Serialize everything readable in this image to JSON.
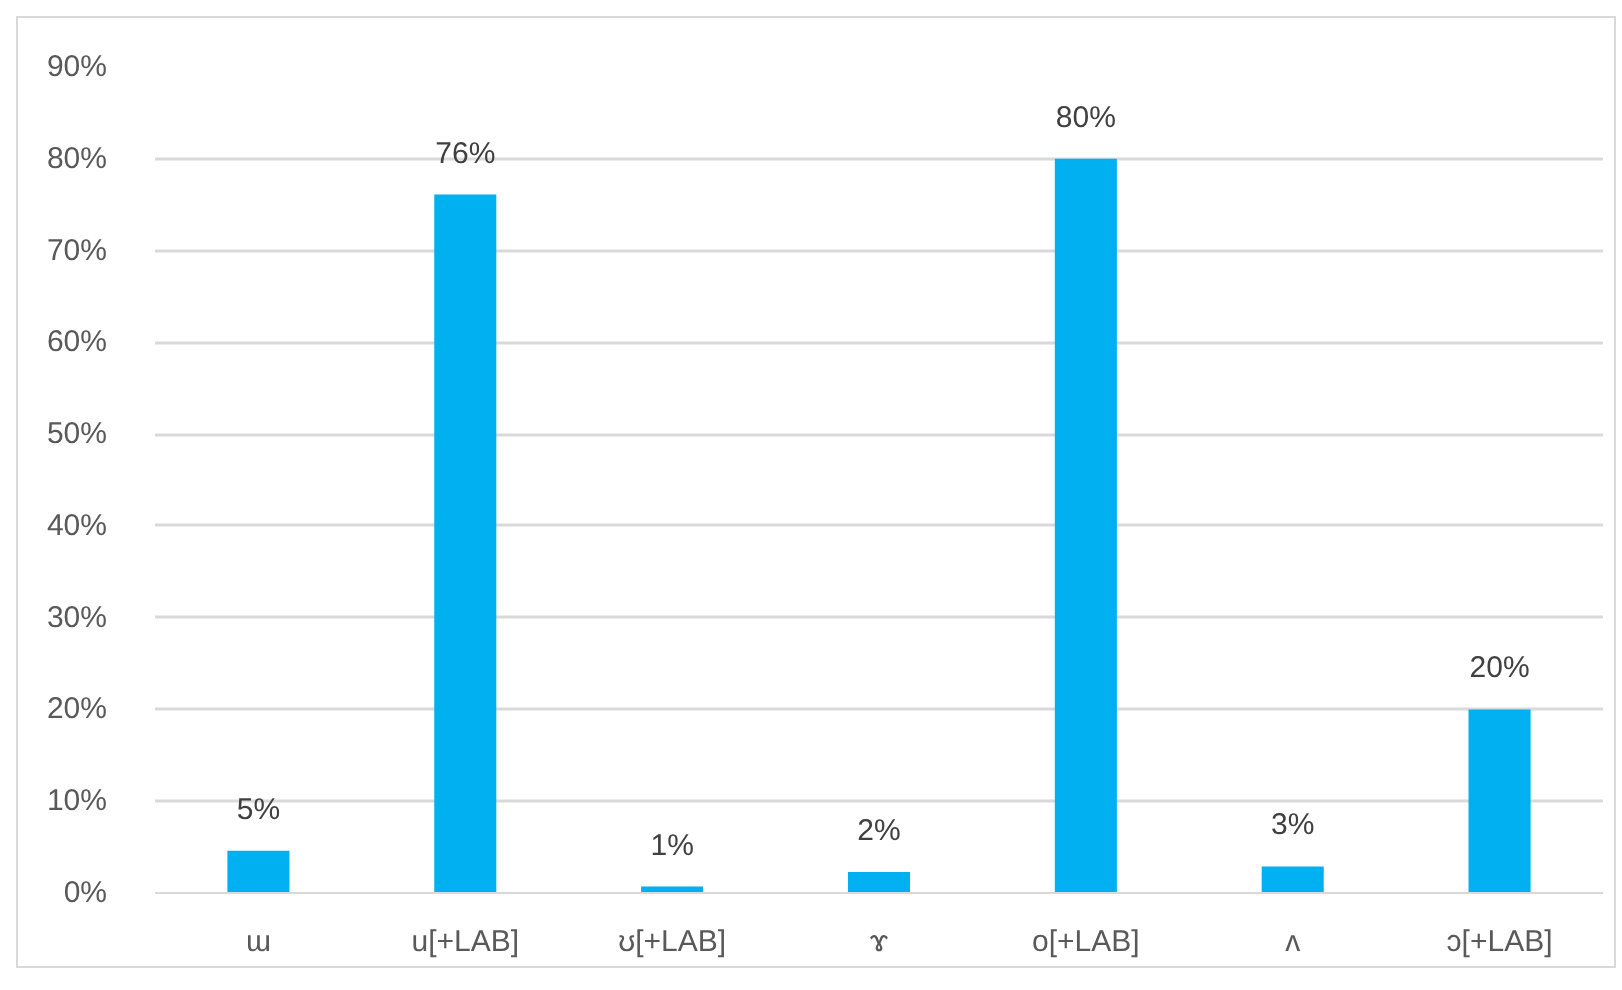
{
  "chart_data": {
    "type": "bar",
    "categories": [
      "ɯ",
      "u[+LAB]",
      "ʊ[+LAB]",
      "ɤ",
      "o[+LAB]",
      "ʌ",
      "ɔ[+LAB]"
    ],
    "values": [
      4.6,
      76.1,
      0.7,
      2.3,
      80,
      2.9,
      20
    ],
    "value_labels": [
      "5%",
      "76%",
      "1%",
      "2%",
      "80%",
      "3%",
      "20%"
    ],
    "color": "#00b0f0",
    "ylim": [
      0,
      90
    ],
    "yticks": [
      {
        "value": 0,
        "label": "0%"
      },
      {
        "value": 10,
        "label": "10%"
      },
      {
        "value": 20,
        "label": "20%"
      },
      {
        "value": 30,
        "label": "30%"
      },
      {
        "value": 40,
        "label": "40%"
      },
      {
        "value": 50,
        "label": "50%"
      },
      {
        "value": 60,
        "label": "60%"
      },
      {
        "value": 70,
        "label": "70%"
      },
      {
        "value": 80,
        "label": "80%"
      },
      {
        "value": 90,
        "label": "90%"
      }
    ],
    "grid": "y"
  }
}
